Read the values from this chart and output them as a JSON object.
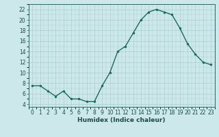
{
  "x": [
    0,
    1,
    2,
    3,
    4,
    5,
    6,
    7,
    8,
    9,
    10,
    11,
    12,
    13,
    14,
    15,
    16,
    17,
    18,
    19,
    20,
    21,
    22,
    23
  ],
  "y": [
    7.5,
    7.5,
    6.5,
    5.5,
    6.5,
    5.0,
    5.0,
    4.5,
    4.5,
    7.5,
    10.0,
    14.0,
    15.0,
    17.5,
    20.0,
    21.5,
    22.0,
    21.5,
    21.0,
    18.5,
    15.5,
    13.5,
    12.0,
    11.5
  ],
  "line_color": "#1a6b5a",
  "marker": "o",
  "markersize": 2.0,
  "linewidth": 1.0,
  "xlabel": "Humidex (Indice chaleur)",
  "xlim": [
    -0.5,
    23.5
  ],
  "ylim": [
    3.5,
    23
  ],
  "yticks": [
    4,
    6,
    8,
    10,
    12,
    14,
    16,
    18,
    20,
    22
  ],
  "xticks": [
    0,
    1,
    2,
    3,
    4,
    5,
    6,
    7,
    8,
    9,
    10,
    11,
    12,
    13,
    14,
    15,
    16,
    17,
    18,
    19,
    20,
    21,
    22,
    23
  ],
  "bg_color": "#cde8ea",
  "grid_color": "#aacdd0",
  "tick_fontsize": 5.5,
  "xlabel_fontsize": 6.5
}
